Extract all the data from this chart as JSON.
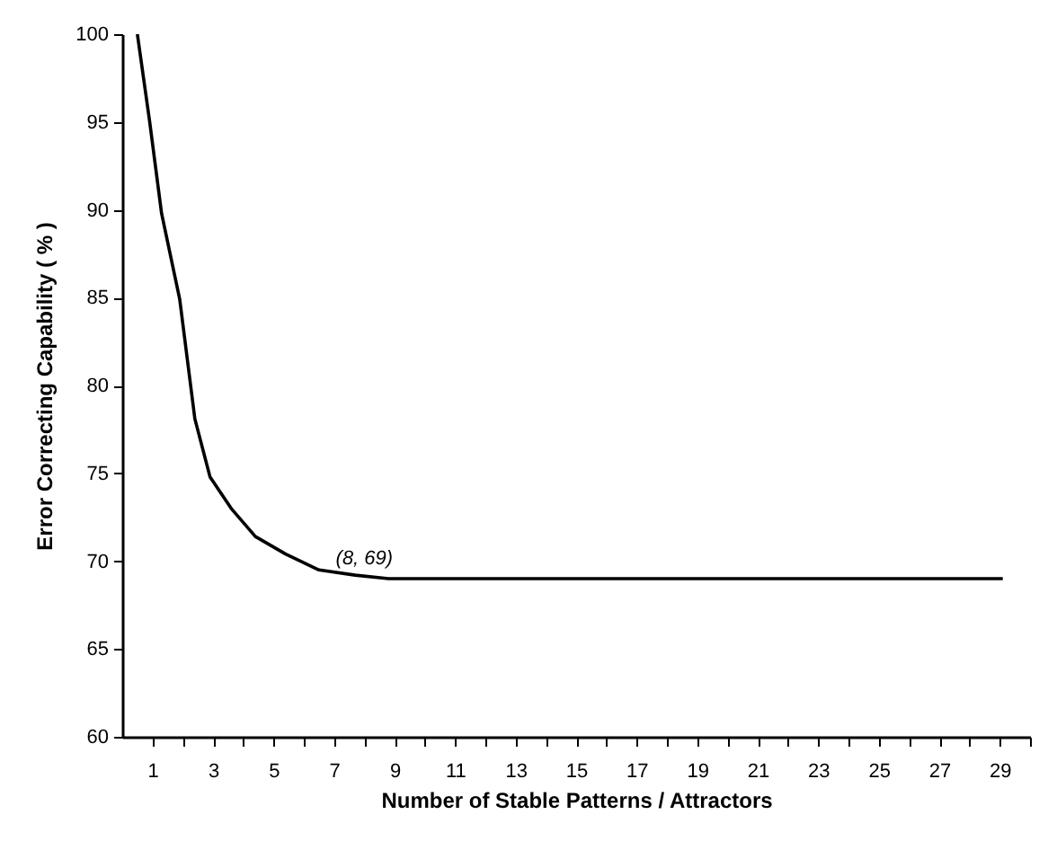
{
  "chart_data": {
    "type": "line",
    "xlabel": "Number of Stable Patterns / Attractors",
    "ylabel": "Error Correcting Capability ( % )",
    "xlim": [
      0,
      30
    ],
    "ylim": [
      60,
      100
    ],
    "xticks": [
      1,
      {
        "value": 2,
        "label": null
      },
      3,
      {
        "value": 4,
        "label": null
      },
      5,
      {
        "value": 6,
        "label": null
      },
      7,
      {
        "value": 8,
        "label": null
      },
      9,
      {
        "value": 10,
        "label": null
      },
      11,
      {
        "value": 12,
        "label": null
      },
      13,
      {
        "value": 14,
        "label": null
      },
      15,
      {
        "value": 16,
        "label": null
      },
      17,
      {
        "value": 18,
        "label": null
      },
      19,
      {
        "value": 20,
        "label": null
      },
      21,
      {
        "value": 22,
        "label": null
      },
      23,
      {
        "value": 24,
        "label": null
      },
      25,
      {
        "value": 26,
        "label": null
      },
      27,
      {
        "value": 28,
        "label": null
      },
      29,
      {
        "value": 30,
        "label": null
      }
    ],
    "yticks": [
      60,
      65,
      70,
      75,
      80,
      85,
      90,
      95,
      100
    ],
    "grid": false,
    "marker": "none",
    "line_style": "solid",
    "series": [
      {
        "color": "#000000",
        "x": [
          0.5,
          0.9,
          1.3,
          1.9,
          2.4,
          2.9,
          3.6,
          4.4,
          5.4,
          6.5,
          7.7,
          8.8,
          29.1
        ],
        "values": [
          100,
          95.1,
          89.8,
          84.9,
          78.1,
          74.8,
          73.0,
          71.4,
          70.4,
          69.5,
          69.2,
          69.0,
          69.0
        ]
      }
    ],
    "annotations": [
      {
        "text": "(8, 69)",
        "x": 8,
        "y": 69
      }
    ]
  }
}
